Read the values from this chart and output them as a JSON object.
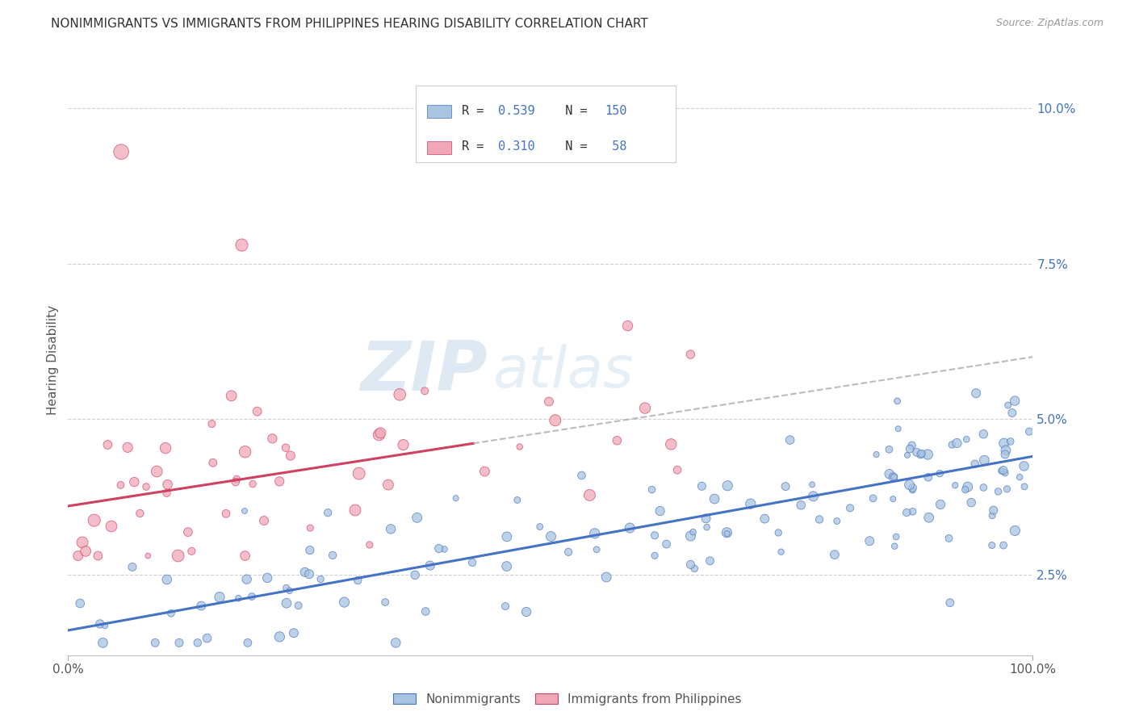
{
  "title": "NONIMMIGRANTS VS IMMIGRANTS FROM PHILIPPINES HEARING DISABILITY CORRELATION CHART",
  "source": "Source: ZipAtlas.com",
  "ylabel": "Hearing Disability",
  "yticks": [
    "2.5%",
    "5.0%",
    "7.5%",
    "10.0%"
  ],
  "ytick_vals": [
    0.025,
    0.05,
    0.075,
    0.1
  ],
  "xlim": [
    0.0,
    1.0
  ],
  "ylim": [
    0.012,
    0.107
  ],
  "legend_r_blue": "0.539",
  "legend_n_blue": "150",
  "legend_r_pink": "0.310",
  "legend_n_pink": "58",
  "blue_scatter_color": "#A8C4E0",
  "pink_scatter_color": "#F0A8B8",
  "blue_line_color": "#4472C4",
  "pink_line_color": "#D04060",
  "watermark_zip": "ZIP",
  "watermark_atlas": "atlas",
  "background_color": "#FFFFFF",
  "blue_intercept": 0.016,
  "blue_slope": 0.028,
  "pink_intercept": 0.036,
  "pink_slope": 0.024,
  "ytick_color": "#4472C4",
  "grid_color": "#CCCCCC",
  "title_color": "#333333",
  "source_color": "#999999"
}
